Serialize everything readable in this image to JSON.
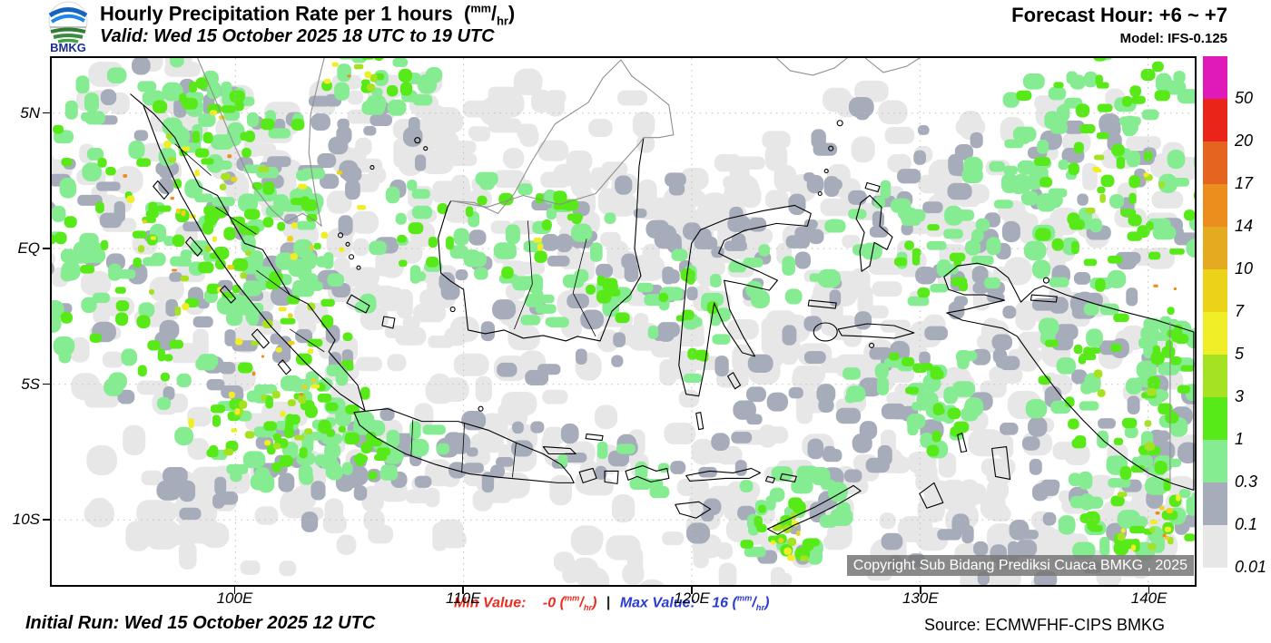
{
  "header": {
    "logo_text": "BMKG",
    "title": "Hourly Precipitation Rate per 1 hours",
    "valid": "Valid: Wed 15 October 2025 18 UTC to 19 UTC",
    "forecast_hour": "Forecast Hour: +6 ~ +7",
    "model": "Model: IFS-0.125"
  },
  "unit": {
    "pre": "(",
    "numerator": "mm",
    "slash": "/",
    "denominator": "hr",
    "post": ")"
  },
  "map": {
    "x_ticks": [
      "100E",
      "110E",
      "120E",
      "130E",
      "140E"
    ],
    "y_ticks": [
      "5N",
      "EQ",
      "5S",
      "10S"
    ],
    "copyright": "Copyright Sub Bidang Prediksi Cuaca BMKG , 2025"
  },
  "colorbar": {
    "labels": [
      "50",
      "20",
      "17",
      "14",
      "10",
      "7",
      "5",
      "3",
      "1",
      "0.3",
      "0.1",
      "0.01"
    ],
    "colors": [
      "#e01ab8",
      "#ea2418",
      "#e56520",
      "#ec8e1e",
      "#e4aa20",
      "#ecd218",
      "#f0ee26",
      "#a5e222",
      "#58ea18",
      "#85ec92",
      "#a6acba",
      "#e7e7e7"
    ]
  },
  "footer": {
    "min_label": "Min Value:",
    "min_value": "-0",
    "divider": "|",
    "max_label": "Max Value:",
    "max_value": "16",
    "min_color": "#e82e21",
    "max_color": "#2b3cd0",
    "initial_run": "Initial Run: Wed 15 October 2025 12 UTC",
    "source": "Source: ECMWFHF-CIPS BMKG"
  }
}
